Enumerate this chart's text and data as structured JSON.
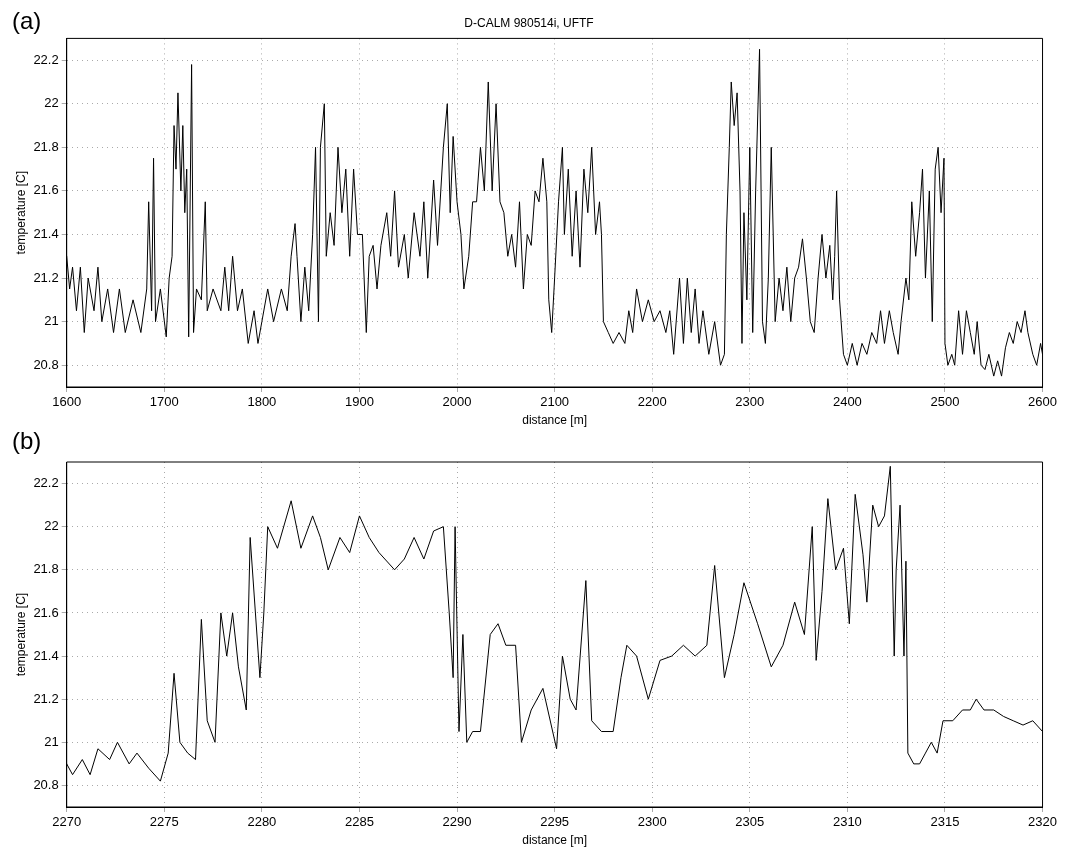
{
  "chart_data": [
    {
      "type": "line",
      "title": "D-CALM 980514i, UFTF",
      "xlabel": "distance [m]",
      "ylabel": "temperature [C]",
      "annotations": [
        "(a)"
      ],
      "grid": true,
      "legend": false,
      "marker": "none",
      "line_style": "solid",
      "xlim": [
        1600,
        2600
      ],
      "ylim": [
        20.7,
        22.3
      ],
      "xticks": [
        1600,
        1700,
        1800,
        1900,
        2000,
        2100,
        2200,
        2300,
        2400,
        2500,
        2600
      ],
      "yticks": [
        20.8,
        21,
        21.2,
        21.4,
        21.6,
        21.8,
        22,
        22.2
      ],
      "x": [
        1600,
        1603,
        1606,
        1610,
        1614,
        1618,
        1622,
        1628,
        1632,
        1636,
        1642,
        1648,
        1654,
        1660,
        1668,
        1676,
        1682,
        1684,
        1687,
        1689,
        1691,
        1696,
        1702,
        1705,
        1708,
        1710,
        1712,
        1714,
        1717,
        1719,
        1721,
        1723,
        1725,
        1728,
        1730,
        1733,
        1738,
        1742,
        1744,
        1750,
        1758,
        1762,
        1766,
        1770,
        1775,
        1780,
        1786,
        1792,
        1796,
        1800,
        1806,
        1812,
        1820,
        1826,
        1830,
        1834,
        1836,
        1840,
        1844,
        1848,
        1852,
        1855,
        1858,
        1860,
        1864,
        1866,
        1870,
        1874,
        1878,
        1882,
        1886,
        1890,
        1894,
        1898,
        1903,
        1907,
        1910,
        1914,
        1918,
        1922,
        1928,
        1932,
        1936,
        1940,
        1946,
        1950,
        1956,
        1962,
        1966,
        1970,
        1976,
        1980,
        1986,
        1990,
        1993,
        1996,
        2000,
        2004,
        2007,
        2012,
        2016,
        2020,
        2024,
        2028,
        2032,
        2036,
        2040,
        2044,
        2048,
        2052,
        2056,
        2060,
        2064,
        2068,
        2072,
        2076,
        2080,
        2084,
        2088,
        2092,
        2094,
        2097,
        2100,
        2104,
        2108,
        2110,
        2114,
        2118,
        2122,
        2126,
        2130,
        2134,
        2138,
        2142,
        2146,
        2148,
        2150,
        2155,
        2160,
        2166,
        2172,
        2176,
        2180,
        2184,
        2190,
        2196,
        2202,
        2208,
        2214,
        2218,
        2222,
        2228,
        2232,
        2236,
        2240,
        2244,
        2248,
        2252,
        2258,
        2264,
        2270,
        2274,
        2276,
        2279,
        2281,
        2284,
        2287,
        2290,
        2292,
        2294,
        2297,
        2300,
        2303,
        2306,
        2310,
        2313,
        2316,
        2319,
        2322,
        2326,
        2330,
        2334,
        2338,
        2342,
        2346,
        2350,
        2354,
        2358,
        2362,
        2366,
        2370,
        2374,
        2378,
        2382,
        2385,
        2387,
        2389,
        2392,
        2396,
        2400,
        2405,
        2410,
        2415,
        2420,
        2425,
        2430,
        2434,
        2438,
        2443,
        2447,
        2452,
        2455,
        2460,
        2463,
        2466,
        2470,
        2474,
        2477,
        2480,
        2484,
        2487,
        2490,
        2493,
        2496,
        2499,
        2500,
        2503,
        2507,
        2510,
        2514,
        2518,
        2522,
        2526,
        2530,
        2533,
        2537,
        2541,
        2545,
        2550,
        2554,
        2558,
        2562,
        2566,
        2570,
        2574,
        2578,
        2582,
        2585,
        2590,
        2594,
        2598,
        2600
      ],
      "series": [
        {
          "color": "#000000",
          "values": [
            21.3,
            21.15,
            21.25,
            21.05,
            21.25,
            20.95,
            21.2,
            21.05,
            21.25,
            21.0,
            21.15,
            20.95,
            21.15,
            20.95,
            21.1,
            20.95,
            21.15,
            21.55,
            21.05,
            21.75,
            21.0,
            21.15,
            20.93,
            21.2,
            21.3,
            21.9,
            21.7,
            22.05,
            21.6,
            21.9,
            21.5,
            21.7,
            20.93,
            22.18,
            20.95,
            21.15,
            21.1,
            21.55,
            21.05,
            21.15,
            21.05,
            21.25,
            21.05,
            21.3,
            21.05,
            21.15,
            20.9,
            21.05,
            20.9,
            21.0,
            21.15,
            21.0,
            21.15,
            21.05,
            21.3,
            21.45,
            21.3,
            21.0,
            21.25,
            21.05,
            21.4,
            21.8,
            21.0,
            21.8,
            22.0,
            21.3,
            21.5,
            21.35,
            21.8,
            21.5,
            21.7,
            21.3,
            21.7,
            21.4,
            21.4,
            20.95,
            21.3,
            21.35,
            21.15,
            21.35,
            21.5,
            21.3,
            21.6,
            21.25,
            21.4,
            21.2,
            21.5,
            21.3,
            21.55,
            21.2,
            21.65,
            21.35,
            21.8,
            22.0,
            21.5,
            21.85,
            21.55,
            21.4,
            21.15,
            21.3,
            21.55,
            21.55,
            21.8,
            21.6,
            22.1,
            21.6,
            22.0,
            21.55,
            21.5,
            21.3,
            21.4,
            21.25,
            21.55,
            21.15,
            21.4,
            21.35,
            21.6,
            21.55,
            21.75,
            21.55,
            21.1,
            20.95,
            21.2,
            21.55,
            21.8,
            21.4,
            21.7,
            21.3,
            21.6,
            21.25,
            21.7,
            21.5,
            21.8,
            21.4,
            21.55,
            21.4,
            21.0,
            20.95,
            20.9,
            20.95,
            20.9,
            21.05,
            20.95,
            21.15,
            21.0,
            21.1,
            21.0,
            21.05,
            20.95,
            21.05,
            20.85,
            21.2,
            20.9,
            21.2,
            20.95,
            21.15,
            20.9,
            21.05,
            20.85,
            21.0,
            20.8,
            20.85,
            21.4,
            21.8,
            22.1,
            21.9,
            22.05,
            21.6,
            20.9,
            21.5,
            21.1,
            21.8,
            20.95,
            21.6,
            22.25,
            21.0,
            20.9,
            21.2,
            21.8,
            21.0,
            21.2,
            21.05,
            21.25,
            21.0,
            21.2,
            21.25,
            21.38,
            21.2,
            21.0,
            20.95,
            21.2,
            21.4,
            21.2,
            21.35,
            21.1,
            21.3,
            21.6,
            21.1,
            20.85,
            20.8,
            20.9,
            20.8,
            20.9,
            20.85,
            20.95,
            20.9,
            21.05,
            20.9,
            21.05,
            20.95,
            20.85,
            21.0,
            21.2,
            21.1,
            21.55,
            21.3,
            21.5,
            21.7,
            21.2,
            21.6,
            21.0,
            21.7,
            21.8,
            21.5,
            21.75,
            20.9,
            20.8,
            20.85,
            20.8,
            21.05,
            20.85,
            21.05,
            20.95,
            20.85,
            21.0,
            20.8,
            20.78,
            20.85,
            20.75,
            20.82,
            20.75,
            20.88,
            20.95,
            20.9,
            21.0,
            20.95,
            21.05,
            20.95,
            20.85,
            20.8,
            20.9,
            20.85
          ]
        }
      ]
    },
    {
      "type": "line",
      "xlabel": "distance [m]",
      "ylabel": "temperature [C]",
      "annotations": [
        "(b)"
      ],
      "grid": true,
      "legend": false,
      "marker": "none",
      "line_style": "solid",
      "xlim": [
        2270,
        2320
      ],
      "ylim": [
        20.7,
        22.3
      ],
      "xticks": [
        2270,
        2275,
        2280,
        2285,
        2290,
        2295,
        2300,
        2305,
        2310,
        2315,
        2320
      ],
      "yticks": [
        20.8,
        21,
        21.2,
        21.4,
        21.6,
        21.8,
        22,
        22.2
      ],
      "x": [
        2270,
        2270.3,
        2270.8,
        2271.2,
        2271.6,
        2272.2,
        2272.6,
        2273.2,
        2273.6,
        2274.2,
        2274.8,
        2275.2,
        2275.5,
        2275.8,
        2276.2,
        2276.6,
        2276.9,
        2277.2,
        2277.6,
        2277.9,
        2278.2,
        2278.5,
        2278.8,
        2279.2,
        2279.4,
        2279.9,
        2280.1,
        2280.3,
        2280.8,
        2281.5,
        2282.0,
        2282.6,
        2283.0,
        2283.4,
        2284.0,
        2284.5,
        2285.0,
        2285.5,
        2286.0,
        2286.8,
        2287.3,
        2287.8,
        2288.3,
        2288.8,
        2289.3,
        2289.6,
        2289.8,
        2289.9,
        2290.1,
        2290.3,
        2290.5,
        2290.8,
        2291.2,
        2291.7,
        2292.1,
        2292.5,
        2293.0,
        2293.3,
        2293.8,
        2294.4,
        2295.1,
        2295.4,
        2295.8,
        2296.1,
        2296.6,
        2296.9,
        2297.4,
        2298.0,
        2298.4,
        2298.7,
        2299.2,
        2299.8,
        2300.4,
        2301.0,
        2301.6,
        2302.2,
        2302.8,
        2303.2,
        2303.7,
        2304.2,
        2304.7,
        2305.4,
        2306.1,
        2306.7,
        2307.3,
        2307.8,
        2308.2,
        2308.4,
        2308.7,
        2309.0,
        2309.4,
        2309.8,
        2310.1,
        2310.4,
        2310.8,
        2311.0,
        2311.3,
        2311.6,
        2311.9,
        2312.2,
        2312.4,
        2312.5,
        2312.7,
        2312.9,
        2313.0,
        2313.1,
        2313.4,
        2313.7,
        2314.0,
        2314.3,
        2314.6,
        2314.9,
        2315.4,
        2315.9,
        2316.3,
        2316.6,
        2317.0,
        2317.5,
        2318.0,
        2318.5,
        2319.0,
        2319.5,
        2320
      ],
      "series": [
        {
          "color": "#000000",
          "values": [
            20.9,
            20.85,
            20.92,
            20.85,
            20.97,
            20.92,
            21.0,
            20.9,
            20.95,
            20.88,
            20.82,
            20.95,
            21.32,
            21.0,
            20.95,
            20.92,
            21.57,
            21.1,
            21.0,
            21.6,
            21.4,
            21.6,
            21.35,
            21.15,
            21.95,
            21.3,
            21.6,
            22.0,
            21.9,
            22.12,
            21.9,
            22.05,
            21.95,
            21.8,
            21.95,
            21.88,
            22.05,
            21.95,
            21.88,
            21.8,
            21.85,
            21.95,
            21.85,
            21.98,
            22.0,
            21.6,
            21.3,
            22.0,
            21.05,
            21.5,
            21.0,
            21.05,
            21.05,
            21.5,
            21.55,
            21.45,
            21.45,
            21.0,
            21.15,
            21.25,
            20.97,
            21.4,
            21.2,
            21.15,
            21.75,
            21.1,
            21.05,
            21.05,
            21.3,
            21.45,
            21.4,
            21.2,
            21.38,
            21.4,
            21.45,
            21.4,
            21.45,
            21.82,
            21.3,
            21.5,
            21.74,
            21.55,
            21.35,
            21.45,
            21.65,
            21.5,
            22.0,
            21.38,
            21.7,
            22.13,
            21.8,
            21.9,
            21.55,
            22.15,
            21.87,
            21.65,
            22.1,
            22.0,
            22.05,
            22.28,
            21.4,
            21.8,
            22.1,
            21.4,
            21.84,
            20.95,
            20.9,
            20.9,
            20.95,
            21.0,
            20.95,
            21.1,
            21.1,
            21.15,
            21.15,
            21.2,
            21.15,
            21.15,
            21.12,
            21.1,
            21.08,
            21.1,
            21.05
          ]
        }
      ]
    }
  ]
}
